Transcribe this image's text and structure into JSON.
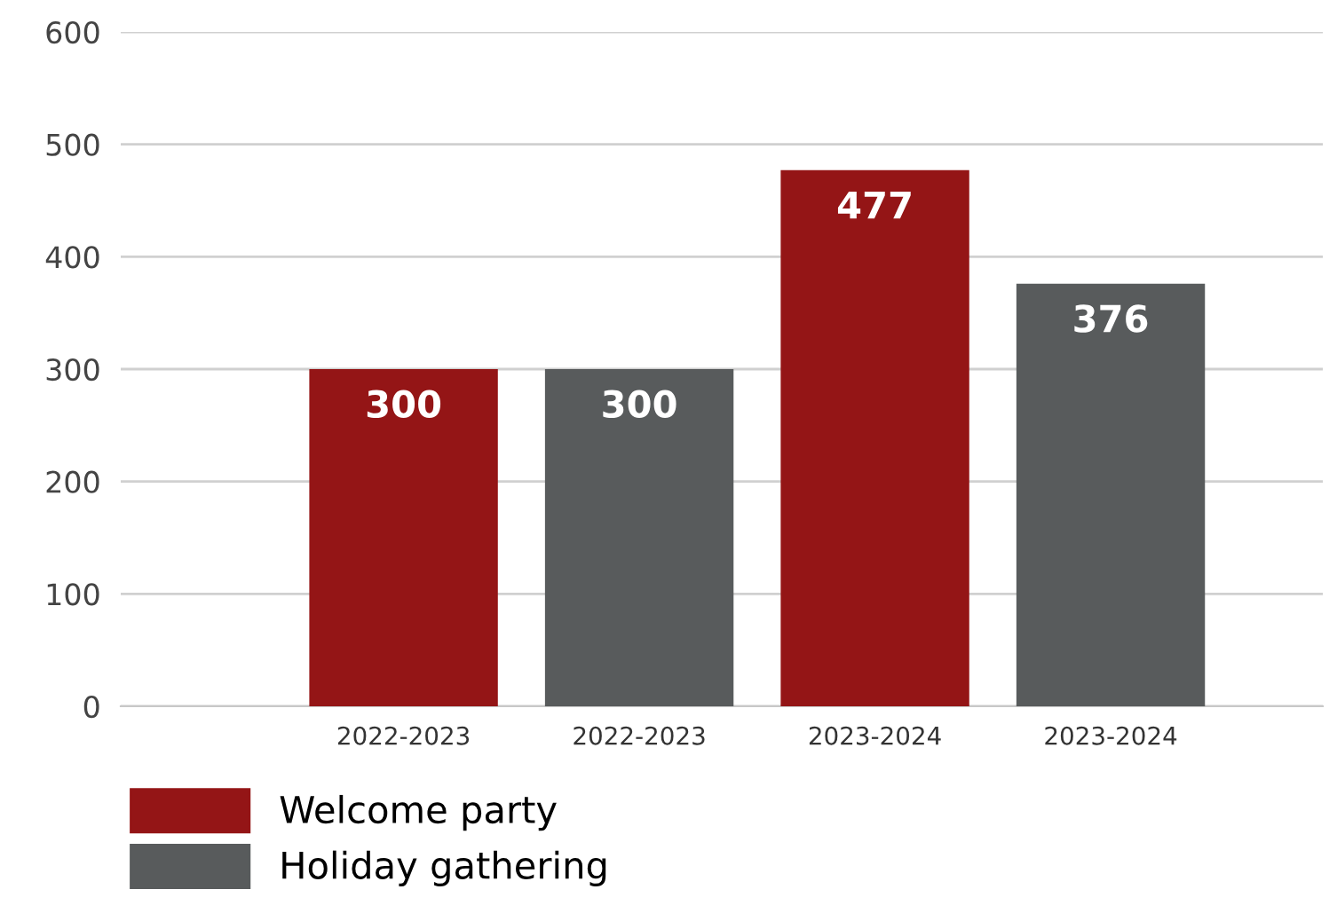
{
  "chart_data": {
    "type": "bar",
    "categories": [
      "2022-2023",
      "2022-2023",
      "2023-2024",
      "2023-2024"
    ],
    "series": [
      {
        "name": "Welcome party",
        "color": "#941516",
        "values": [
          300,
          null,
          477,
          null
        ]
      },
      {
        "name": "Holiday gathering",
        "color": "#585b5c",
        "values": [
          null,
          300,
          null,
          376
        ]
      }
    ],
    "ylim": [
      0,
      600
    ],
    "yticks": [
      0,
      100,
      200,
      300,
      400,
      500,
      600
    ],
    "grid": "y",
    "legend": "bottom left",
    "data_labels": true
  }
}
